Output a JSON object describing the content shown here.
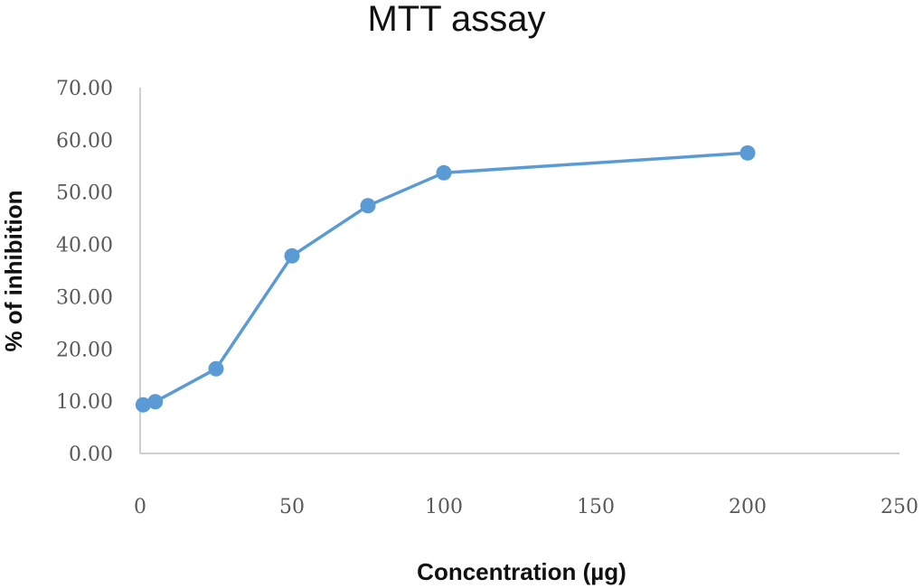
{
  "chart_data": {
    "type": "scatter",
    "title": "MTT assay",
    "xlabel": "Concentration (µg)",
    "ylabel": "% of inhibition",
    "xlim": [
      0,
      250
    ],
    "ylim": [
      0,
      70
    ],
    "x_ticks": [
      "0",
      "50",
      "100",
      "150",
      "200",
      "250"
    ],
    "y_ticks": [
      "0.00",
      "10.00",
      "20.00",
      "30.00",
      "40.00",
      "50.00",
      "60.00",
      "70.00"
    ],
    "grid": false,
    "legend": "none",
    "lines_connected": true,
    "series": [
      {
        "color": "#5b9bd5",
        "x": [
          1,
          5,
          25,
          50,
          75,
          100,
          200
        ],
        "y": [
          9.3,
          9.9,
          16.2,
          37.8,
          47.4,
          53.7,
          57.5
        ]
      }
    ]
  }
}
